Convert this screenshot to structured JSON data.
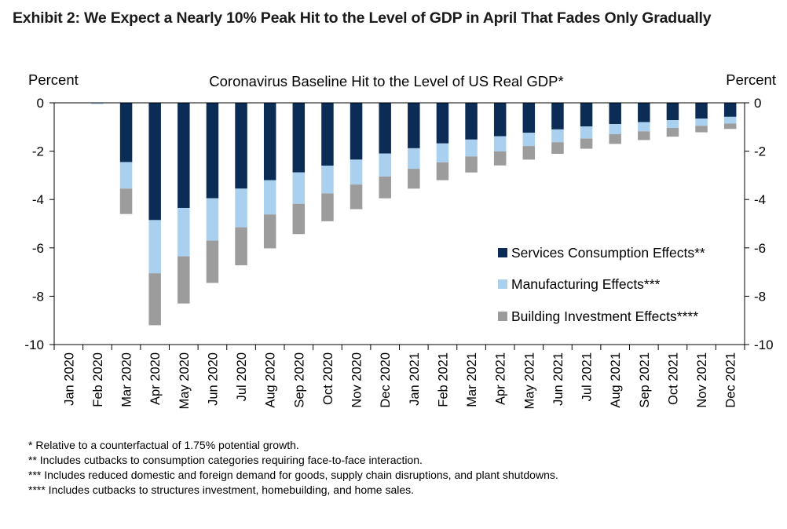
{
  "exhibit_title": "Exhibit 2: We Expect a Nearly 10% Peak Hit to the Level of GDP in April That Fades Only Gradually",
  "footnotes": [
    "* Relative to a counterfactual of 1.75% potential growth.",
    "** Includes cutbacks to consumption categories requiring face-to-face interaction.",
    "*** Includes reduced domestic and foreign demand for goods, supply chain disruptions, and plant shutdowns.",
    "**** Includes cutbacks to structures investment, homebuilding, and home sales."
  ],
  "chart_data": {
    "type": "bar",
    "stacked": true,
    "title": "Coronavirus Baseline Hit to the Level of US Real GDP*",
    "ylabel_left": "Percent",
    "ylabel_right": "Percent",
    "ylim": [
      -10,
      0
    ],
    "yticks": [
      0,
      -2,
      -4,
      -6,
      -8,
      -10
    ],
    "grid": false,
    "legend_position": "right-center",
    "categories": [
      "Jan 2020",
      "Feb 2020",
      "Mar 2020",
      "Apr 2020",
      "May 2020",
      "Jun 2020",
      "Jul 2020",
      "Aug 2020",
      "Sep 2020",
      "Oct 2020",
      "Nov 2020",
      "Dec 2020",
      "Jan 2021",
      "Feb 2021",
      "Mar 2021",
      "Apr 2021",
      "May 2021",
      "Jun 2021",
      "Jul 2021",
      "Aug 2021",
      "Sep 2021",
      "Oct 2021",
      "Nov 2021",
      "Dec 2021"
    ],
    "series": [
      {
        "name": "Services Consumption Effects**",
        "color": "#0b2d55",
        "values": [
          0,
          0,
          -2.45,
          -4.85,
          -4.35,
          -3.95,
          -3.55,
          -3.2,
          -2.88,
          -2.6,
          -2.35,
          -2.1,
          -1.88,
          -1.68,
          -1.52,
          -1.38,
          -1.24,
          -1.1,
          -0.98,
          -0.88,
          -0.8,
          -0.72,
          -0.65,
          -0.58
        ]
      },
      {
        "name": "Manufacturing Effects***",
        "color": "#a9d0ee",
        "values": [
          0,
          -0.05,
          -1.1,
          -2.2,
          -2.0,
          -1.75,
          -1.6,
          -1.42,
          -1.3,
          -1.15,
          -1.03,
          -0.95,
          -0.85,
          -0.78,
          -0.7,
          -0.63,
          -0.55,
          -0.53,
          -0.5,
          -0.42,
          -0.38,
          -0.32,
          -0.3,
          -0.28
        ]
      },
      {
        "name": "Building Investment Effects****",
        "color": "#9c9c9c",
        "values": [
          0,
          0,
          -1.05,
          -2.15,
          -1.95,
          -1.75,
          -1.57,
          -1.4,
          -1.25,
          -1.15,
          -1.02,
          -0.9,
          -0.82,
          -0.74,
          -0.66,
          -0.58,
          -0.56,
          -0.48,
          -0.42,
          -0.4,
          -0.36,
          -0.36,
          -0.27,
          -0.22
        ]
      }
    ]
  }
}
